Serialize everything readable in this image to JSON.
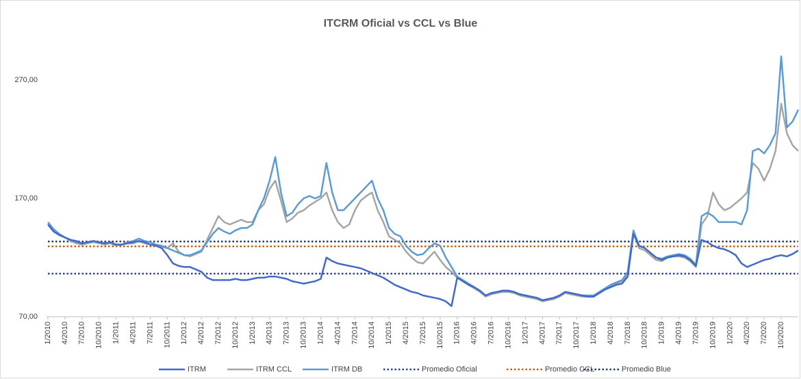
{
  "chart_data": {
    "type": "line",
    "title": "ITCRM Oficial vs CCL vs Blue",
    "categories": [
      "1/2010",
      null,
      null,
      "4/2010",
      null,
      null,
      "7/2010",
      null,
      null,
      "10/2010",
      null,
      null,
      "1/2011",
      null,
      null,
      "4/2011",
      null,
      null,
      "7/2011",
      null,
      null,
      "10/2011",
      null,
      null,
      "1/2012",
      null,
      null,
      "4/2012",
      null,
      null,
      "7/2012",
      null,
      null,
      "10/2012",
      null,
      null,
      "1/2013",
      null,
      null,
      "4/2013",
      null,
      null,
      "7/2013",
      null,
      null,
      "10/2013",
      null,
      null,
      "1/2014",
      null,
      null,
      "4/2014",
      null,
      null,
      "7/2014",
      null,
      null,
      "10/2014",
      null,
      null,
      "1/2015",
      null,
      null,
      "4/2015",
      null,
      null,
      "7/2015",
      null,
      null,
      "10/2015",
      null,
      null,
      "1/2016",
      null,
      null,
      "4/2016",
      null,
      null,
      "7/2016",
      null,
      null,
      "10/2016",
      null,
      null,
      "1/2017",
      null,
      null,
      "4/2017",
      null,
      null,
      "7/2017",
      null,
      null,
      "10/2017",
      null,
      null,
      "1/2018",
      null,
      null,
      "4/2018",
      null,
      null,
      "7/2018",
      null,
      null,
      "10/2018",
      null,
      null,
      "1/2019",
      null,
      null,
      "4/2019",
      null,
      null,
      "7/2019",
      null,
      null,
      "10/2019",
      null,
      null,
      "1/2020",
      null,
      null,
      "4/2020",
      null,
      null,
      "7/2020",
      null,
      null,
      "10/2020",
      null,
      null,
      null
    ],
    "series": [
      {
        "name": "ITRM",
        "color": "#4169c8",
        "values": [
          148,
          142,
          139,
          137,
          135,
          134,
          132,
          133,
          134,
          133,
          132,
          133,
          131,
          131,
          132,
          133,
          134,
          133,
          131,
          130,
          128,
          122,
          115,
          113,
          112,
          112,
          110,
          108,
          103,
          101,
          101,
          101,
          101,
          102,
          101,
          101,
          102,
          103,
          103,
          104,
          104,
          103,
          102,
          100,
          99,
          98,
          99,
          100,
          102,
          120,
          117,
          115,
          114,
          113,
          112,
          111,
          109,
          107,
          105,
          103,
          100,
          97,
          95,
          93,
          91,
          90,
          88,
          87,
          86,
          85,
          83,
          79,
          103,
          100,
          97,
          95,
          92,
          88,
          90,
          91,
          92,
          92,
          91,
          89,
          88,
          87,
          86,
          84,
          85,
          86,
          88,
          91,
          90,
          89,
          88,
          87,
          87,
          90,
          93,
          95,
          97,
          98,
          104,
          140,
          130,
          128,
          124,
          120,
          118,
          120,
          121,
          122,
          121,
          118,
          113,
          135,
          133,
          130,
          128,
          127,
          125,
          122,
          115,
          112,
          114,
          116,
          118,
          119,
          121,
          122,
          121,
          123,
          126
        ]
      },
      {
        "name": "ITRM CCL",
        "color": "#a5a5a5",
        "values": [
          148,
          142,
          139,
          137,
          134,
          132,
          131,
          132,
          133,
          132,
          131,
          132,
          130,
          131,
          132,
          132,
          134,
          132,
          131,
          130,
          129,
          128,
          132,
          125,
          122,
          121,
          123,
          125,
          135,
          145,
          155,
          150,
          148,
          150,
          152,
          150,
          150,
          160,
          165,
          178,
          185,
          168,
          150,
          153,
          158,
          160,
          164,
          167,
          170,
          175,
          160,
          150,
          145,
          148,
          160,
          168,
          172,
          175,
          160,
          150,
          138,
          135,
          132,
          125,
          120,
          116,
          115,
          120,
          125,
          118,
          112,
          108,
          103,
          100,
          97,
          94,
          91,
          87,
          89,
          90,
          91,
          91,
          90,
          88,
          87,
          86,
          85,
          83,
          84,
          85,
          87,
          90,
          89,
          88,
          87,
          87,
          87,
          90,
          93,
          96,
          98,
          100,
          105,
          141,
          128,
          126,
          122,
          118,
          117,
          120,
          121,
          121,
          120,
          117,
          112,
          148,
          155,
          175,
          165,
          160,
          162,
          166,
          170,
          175,
          200,
          195,
          185,
          195,
          210,
          250,
          225,
          215,
          210
        ]
      },
      {
        "name": "ITRM DB",
        "color": "#5b9bd5",
        "values": [
          150,
          144,
          140,
          137,
          135,
          133,
          132,
          133,
          134,
          133,
          132,
          133,
          131,
          131,
          133,
          134,
          136,
          134,
          133,
          131,
          130,
          128,
          126,
          124,
          122,
          122,
          124,
          126,
          133,
          140,
          145,
          142,
          140,
          143,
          145,
          145,
          148,
          160,
          170,
          185,
          205,
          175,
          155,
          158,
          165,
          170,
          172,
          170,
          172,
          200,
          175,
          160,
          160,
          165,
          170,
          175,
          180,
          185,
          170,
          160,
          145,
          140,
          138,
          130,
          125,
          122,
          123,
          128,
          132,
          130,
          120,
          112,
          104,
          101,
          98,
          95,
          92,
          88,
          90,
          91,
          92,
          92,
          91,
          89,
          88,
          87,
          86,
          84,
          85,
          86,
          88,
          91,
          90,
          89,
          88,
          88,
          88,
          91,
          94,
          97,
          99,
          101,
          108,
          143,
          130,
          128,
          124,
          120,
          119,
          121,
          122,
          123,
          122,
          119,
          114,
          155,
          158,
          155,
          150,
          150,
          150,
          150,
          148,
          160,
          210,
          212,
          208,
          215,
          225,
          290,
          230,
          235,
          245
        ]
      }
    ],
    "reference_lines": [
      {
        "name": "Promedio Oficial",
        "color": "#2f3f8f",
        "value": 106.4
      },
      {
        "name": "Promedio CCL",
        "color": "#c55a11",
        "value": 129.5
      },
      {
        "name": "Promedio Blue",
        "color": "#203864",
        "value": 133.6
      }
    ],
    "ylim": [
      70,
      310
    ],
    "yticks": [
      {
        "value": 70,
        "label": "70,00"
      },
      {
        "value": 170,
        "label": "170,00"
      },
      {
        "value": 270,
        "label": "270,00"
      }
    ],
    "grid": false,
    "legend": "bottom"
  }
}
